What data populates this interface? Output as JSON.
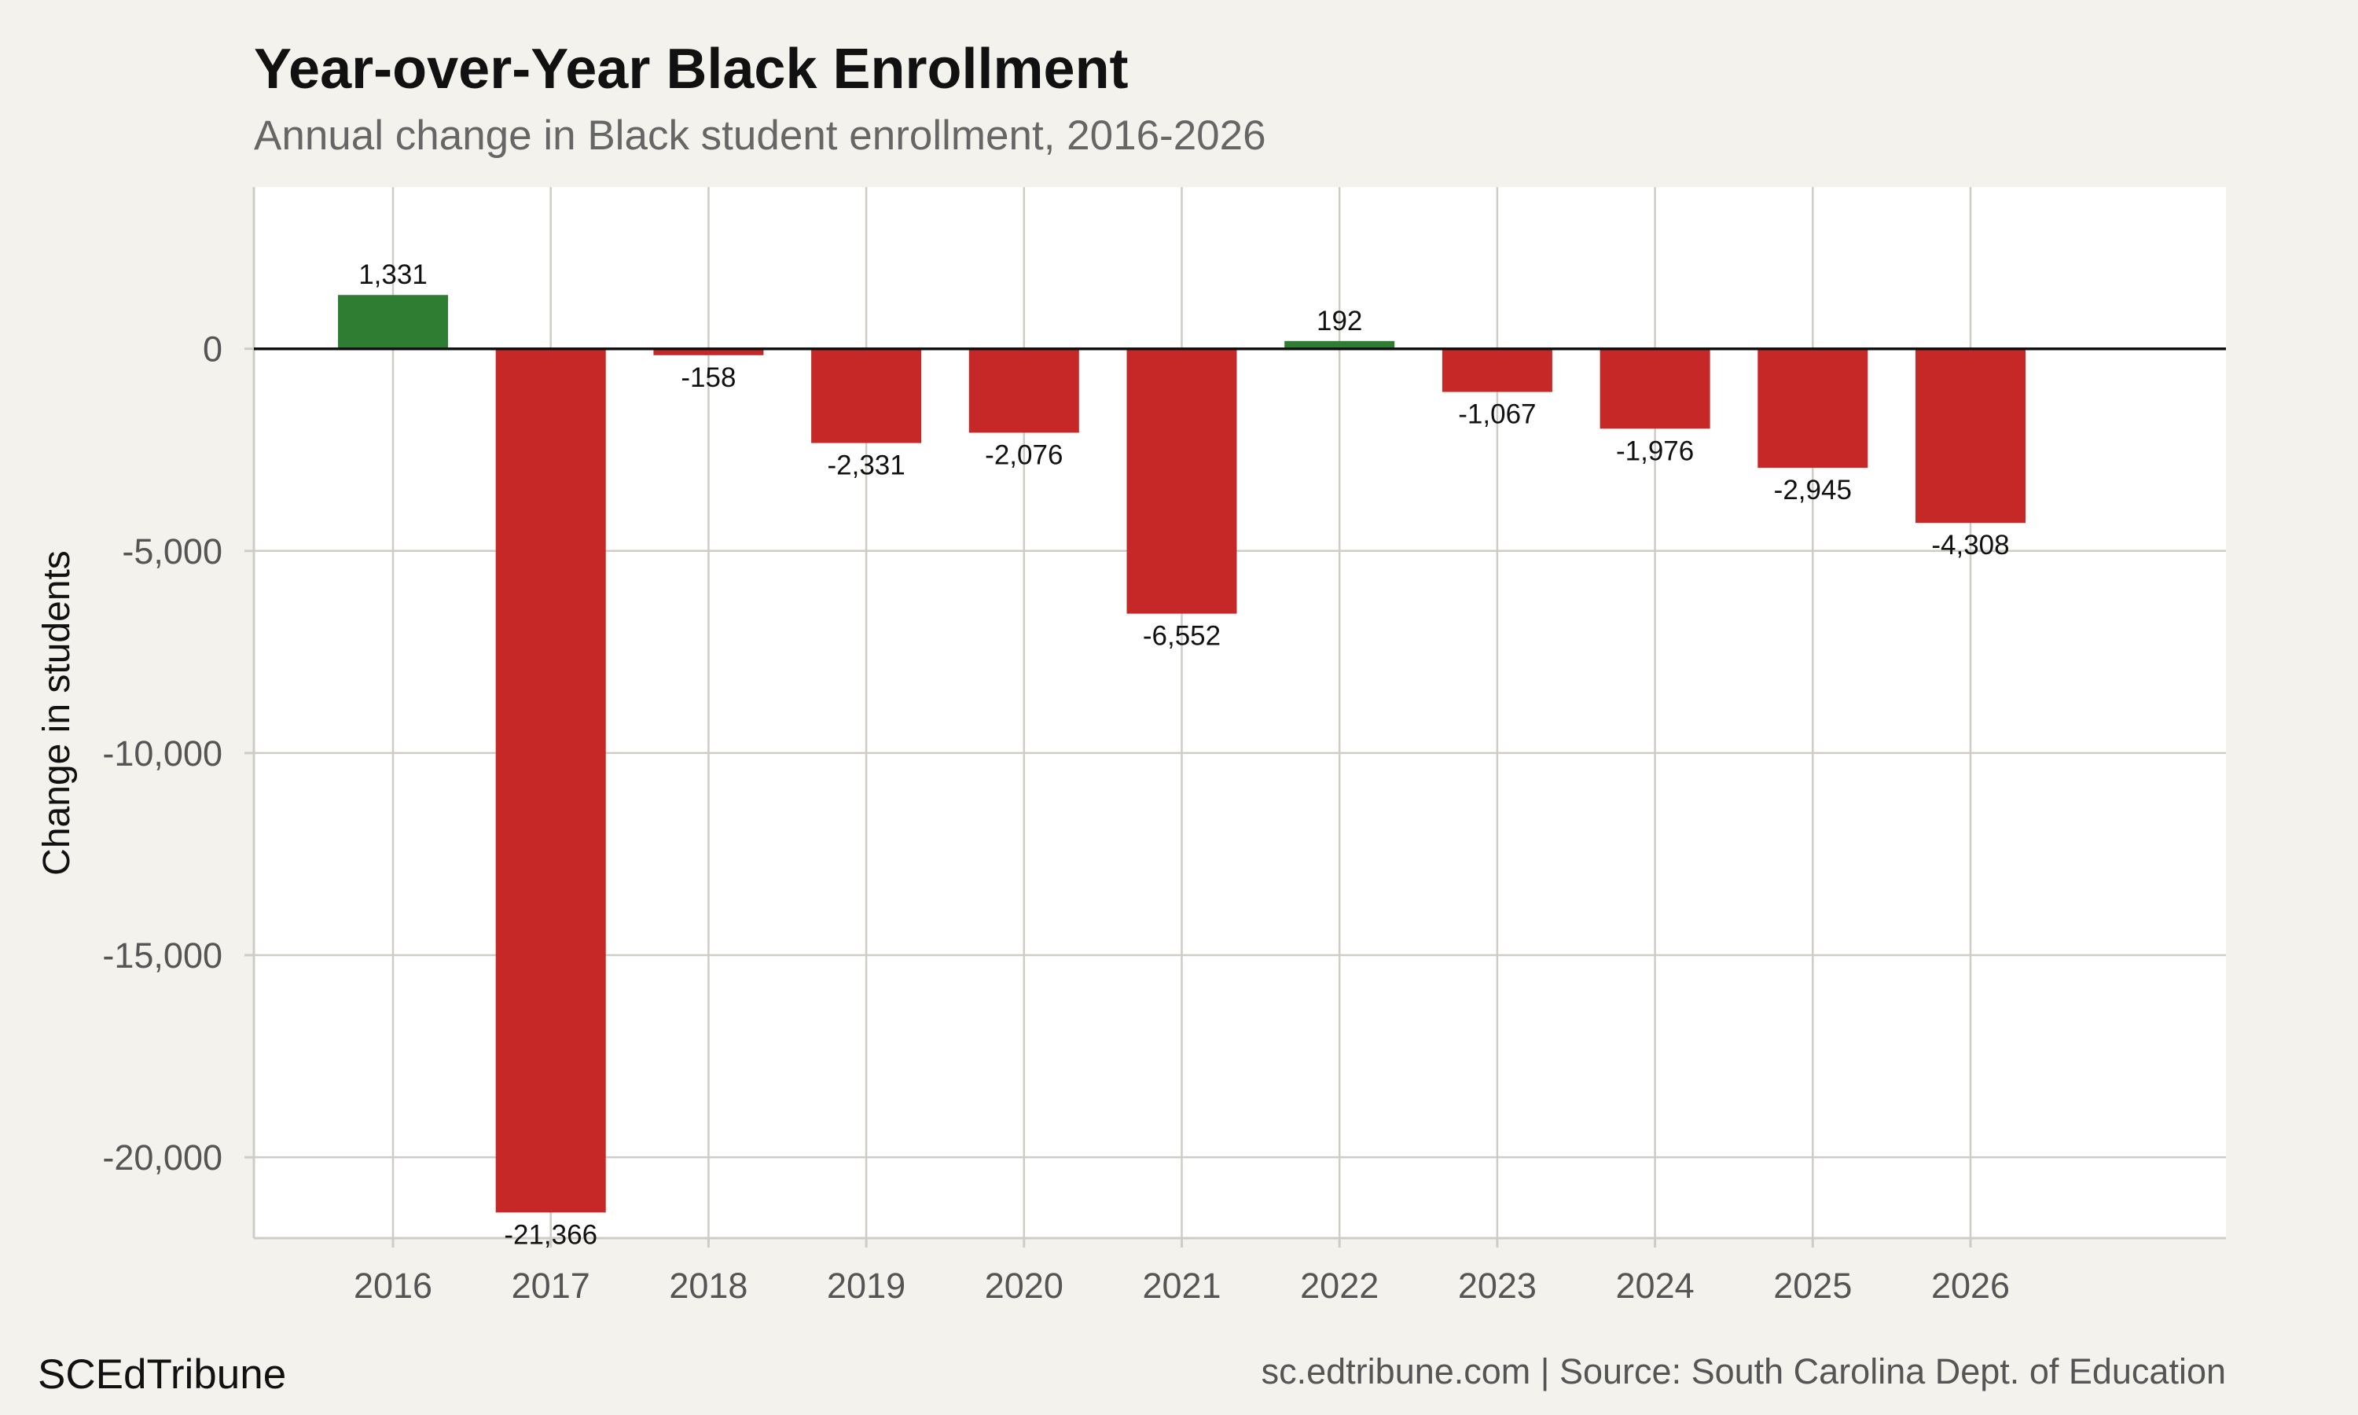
{
  "chart_data": {
    "type": "bar",
    "title": "Year-over-Year Black Enrollment",
    "subtitle": "Annual change in Black student enrollment, 2016-2026",
    "xlabel": "",
    "ylabel": "Change in students",
    "categories": [
      "2016",
      "2017",
      "2018",
      "2019",
      "2020",
      "2021",
      "2022",
      "2023",
      "2024",
      "2025",
      "2026"
    ],
    "values": [
      1331,
      -21366,
      -158,
      -2331,
      -2076,
      -6552,
      192,
      -1067,
      -1976,
      -2945,
      -4308
    ],
    "data_labels": [
      "1,331",
      "-21,366",
      "-158",
      "-2,331",
      "-2,076",
      "-6,552",
      "192",
      "-1,067",
      "-1,976",
      "-2,945",
      "-4,308"
    ],
    "ylim": [
      -22000,
      4000
    ],
    "y_ticks": [
      0,
      -5000,
      -10000,
      -15000,
      -20000
    ],
    "y_tick_labels": [
      "0",
      "-5,000",
      "-10,000",
      "-15,000",
      "-20,000"
    ],
    "grid": true,
    "legend": "none",
    "colors": {
      "positive": "#2e7d32",
      "negative": "#c62828",
      "background": "#f4f2ed",
      "panel": "#ffffff",
      "grid": "#cfccc6",
      "zero_line": "#111111"
    }
  },
  "footer": {
    "brand": "SCEdTribune",
    "source": "sc.edtribune.com | Source: South Carolina Dept. of Education"
  }
}
